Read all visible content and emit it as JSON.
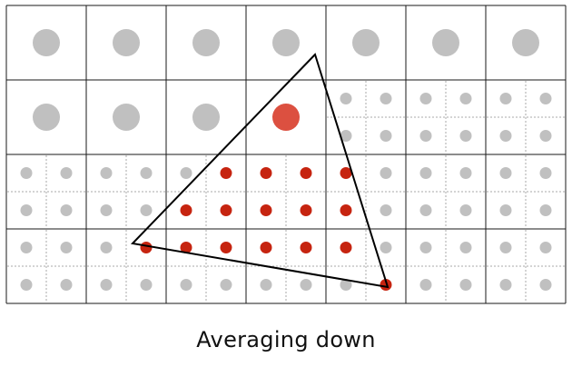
{
  "caption": "Averaging down",
  "grid": {
    "columns": 7,
    "rows": 4,
    "cell_subdivision": [
      [
        1,
        1,
        1,
        1,
        1,
        1,
        1
      ],
      [
        1,
        1,
        1,
        1,
        2,
        2,
        2
      ],
      [
        2,
        2,
        2,
        2,
        2,
        2,
        2
      ],
      [
        2,
        2,
        2,
        2,
        2,
        2,
        2
      ]
    ]
  },
  "covered": {
    "coarse": [
      [
        1,
        3
      ]
    ],
    "fine": [
      [
        4,
        5
      ],
      [
        4,
        6
      ],
      [
        4,
        7
      ],
      [
        4,
        8
      ],
      [
        5,
        4
      ],
      [
        5,
        5
      ],
      [
        5,
        6
      ],
      [
        5,
        7
      ],
      [
        5,
        8
      ],
      [
        6,
        3
      ],
      [
        6,
        4
      ],
      [
        6,
        5
      ],
      [
        6,
        6
      ],
      [
        6,
        7
      ],
      [
        6,
        8
      ],
      [
        7,
        9
      ]
    ]
  },
  "colors": {
    "sample_outside": "#c0c0c0",
    "sample_inside_fine": "#c62410",
    "sample_inside_coarse": "#dc5040",
    "grid_line": "#1a1a1a",
    "subgrid_line": "#a8a8a8",
    "triangle": "#000000"
  }
}
